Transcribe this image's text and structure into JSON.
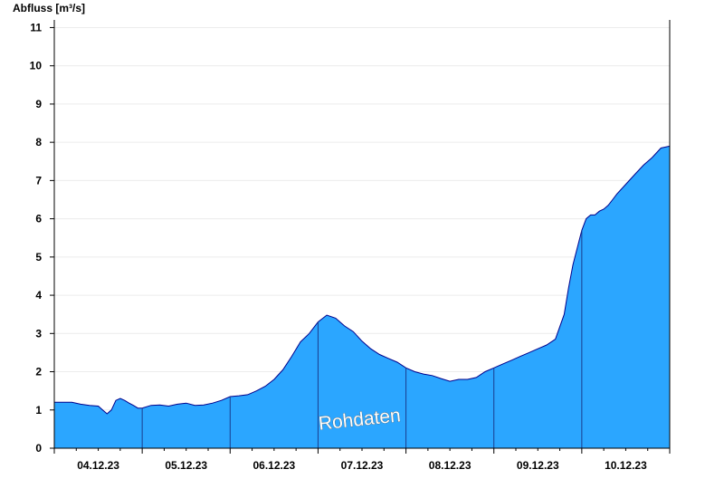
{
  "chart_data": {
    "type": "area",
    "ylabel": "Abfluss [m³/s]",
    "xlabel": "",
    "title": "",
    "ylim": [
      0,
      11.2
    ],
    "y_ticks": [
      0,
      1,
      2,
      3,
      4,
      5,
      6,
      7,
      8,
      9,
      10,
      11
    ],
    "x_tick_labels": [
      "04.12.23",
      "05.12.23",
      "06.12.23",
      "07.12.23",
      "08.12.23",
      "09.12.23",
      "10.12.23"
    ],
    "x_range_days": [
      0,
      7
    ],
    "day_boundaries": [
      1,
      2,
      3,
      4,
      5,
      6
    ],
    "grid": "horizontal",
    "fill_color": "#2ba6ff",
    "line_color": "#00008b",
    "annotation": "Rohdaten",
    "series": [
      {
        "x": [
          0,
          0.1,
          0.2,
          0.3,
          0.4,
          0.5,
          0.55,
          0.6,
          0.65,
          0.7,
          0.75,
          0.8,
          0.85,
          0.9,
          0.95,
          1.0,
          1.1,
          1.2,
          1.3,
          1.4,
          1.5,
          1.6,
          1.7,
          1.8,
          1.9,
          2.0,
          2.1,
          2.2,
          2.3,
          2.4,
          2.5,
          2.6,
          2.7,
          2.8,
          2.9,
          3.0,
          3.1,
          3.2,
          3.25,
          3.3,
          3.4,
          3.5,
          3.6,
          3.7,
          3.8,
          3.9,
          4.0,
          4.1,
          4.2,
          4.3,
          4.4,
          4.5,
          4.6,
          4.7,
          4.8,
          4.9,
          5.0,
          5.1,
          5.2,
          5.3,
          5.4,
          5.5,
          5.6,
          5.7,
          5.8,
          5.85,
          5.9,
          6.0,
          6.05,
          6.1,
          6.15,
          6.2,
          6.25,
          6.3,
          6.35,
          6.4,
          6.5,
          6.6,
          6.7,
          6.8,
          6.9,
          7.0
        ],
        "values": [
          1.2,
          1.2,
          1.2,
          1.15,
          1.12,
          1.1,
          1.0,
          0.9,
          1.0,
          1.25,
          1.3,
          1.25,
          1.18,
          1.12,
          1.05,
          1.05,
          1.12,
          1.13,
          1.1,
          1.15,
          1.18,
          1.12,
          1.13,
          1.18,
          1.25,
          1.35,
          1.37,
          1.4,
          1.5,
          1.62,
          1.8,
          2.05,
          2.4,
          2.78,
          3.0,
          3.3,
          3.48,
          3.4,
          3.3,
          3.2,
          3.05,
          2.8,
          2.6,
          2.45,
          2.35,
          2.25,
          2.1,
          2.0,
          1.94,
          1.9,
          1.82,
          1.75,
          1.8,
          1.8,
          1.85,
          2.0,
          2.1,
          2.2,
          2.3,
          2.4,
          2.5,
          2.6,
          2.7,
          2.85,
          3.5,
          4.2,
          4.8,
          5.7,
          6.0,
          6.1,
          6.1,
          6.2,
          6.25,
          6.35,
          6.5,
          6.65,
          6.9,
          7.15,
          7.4,
          7.6,
          7.85,
          7.9
        ]
      }
    ]
  }
}
